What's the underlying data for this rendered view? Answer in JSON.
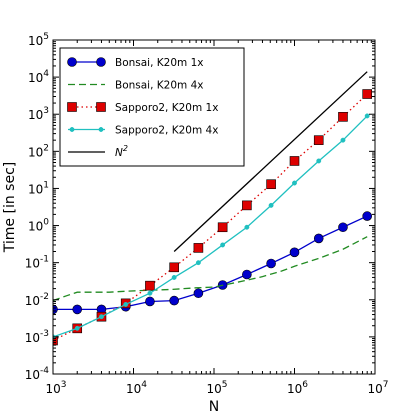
{
  "chart_data": {
    "type": "line",
    "xlabel": "N",
    "ylabel": "Time [in sec]",
    "xscale": "log",
    "yscale": "log",
    "xlim": [
      1000,
      10000000
    ],
    "ylim": [
      0.0001,
      100000
    ],
    "legend_position": "top-left",
    "grid": false,
    "x_ticks": [
      {
        "base": "10",
        "exp": "3",
        "value": 1000
      },
      {
        "base": "10",
        "exp": "4",
        "value": 10000
      },
      {
        "base": "10",
        "exp": "5",
        "value": 100000
      },
      {
        "base": "10",
        "exp": "6",
        "value": 1000000
      },
      {
        "base": "10",
        "exp": "7",
        "value": 10000000
      }
    ],
    "y_ticks": [
      {
        "base": "10",
        "exp": "-4",
        "value": 0.0001
      },
      {
        "base": "10",
        "exp": "-3",
        "value": 0.001
      },
      {
        "base": "10",
        "exp": "-2",
        "value": 0.01
      },
      {
        "base": "10",
        "exp": "-1",
        "value": 0.1
      },
      {
        "base": "10",
        "exp": "0",
        "value": 1
      },
      {
        "base": "10",
        "exp": "1",
        "value": 10
      },
      {
        "base": "10",
        "exp": "2",
        "value": 100
      },
      {
        "base": "10",
        "exp": "3",
        "value": 1000
      },
      {
        "base": "10",
        "exp": "4",
        "value": 10000
      },
      {
        "base": "10",
        "exp": "5",
        "value": 100000
      }
    ],
    "series": [
      {
        "name": "Bonsai, K20m 1x",
        "color": "#0000cc",
        "line_style": "solid",
        "marker": "circle-large",
        "points": [
          [
            1000,
            0.0055
          ],
          [
            2000,
            0.0055
          ],
          [
            4000,
            0.0055
          ],
          [
            8000,
            0.0065
          ],
          [
            16000,
            0.009
          ],
          [
            32000,
            0.0095
          ],
          [
            64000,
            0.015
          ],
          [
            128000,
            0.025
          ],
          [
            256000,
            0.048
          ],
          [
            512000,
            0.095
          ],
          [
            1000000,
            0.19
          ],
          [
            2000000,
            0.45
          ],
          [
            4000000,
            0.9
          ],
          [
            8000000,
            1.8
          ]
        ]
      },
      {
        "name": "Bonsai, K20m 4x",
        "color": "#228b22",
        "line_style": "dashed",
        "marker": "none",
        "points": [
          [
            1000,
            0.0095
          ],
          [
            1500,
            0.013
          ],
          [
            2000,
            0.016
          ],
          [
            3000,
            0.016
          ],
          [
            5000,
            0.016
          ],
          [
            8000,
            0.017
          ],
          [
            15000,
            0.018
          ],
          [
            30000,
            0.019
          ],
          [
            60000,
            0.021
          ],
          [
            100000,
            0.022
          ],
          [
            200000,
            0.03
          ],
          [
            400000,
            0.042
          ],
          [
            700000,
            0.06
          ],
          [
            1000000,
            0.08
          ],
          [
            2000000,
            0.13
          ],
          [
            4000000,
            0.23
          ],
          [
            8000000,
            0.5
          ]
        ]
      },
      {
        "name": "Sapporo2, K20m 1x",
        "color": "#dd0000",
        "line_style": "dotted",
        "marker": "square-large",
        "points": [
          [
            1000,
            0.0008
          ],
          [
            2000,
            0.0017
          ],
          [
            4000,
            0.0035
          ],
          [
            8000,
            0.008
          ],
          [
            16000,
            0.024
          ],
          [
            32000,
            0.075
          ],
          [
            64000,
            0.25
          ],
          [
            128000,
            0.9
          ],
          [
            256000,
            3.5
          ],
          [
            512000,
            13
          ],
          [
            1000000,
            55
          ],
          [
            2000000,
            200
          ],
          [
            4000000,
            850
          ],
          [
            8000000,
            3500
          ]
        ]
      },
      {
        "name": "Sapporo2, K20m 4x",
        "color": "#20c0c0",
        "line_style": "solid",
        "marker": "circle-small",
        "points": [
          [
            1000,
            0.001
          ],
          [
            2000,
            0.0017
          ],
          [
            4000,
            0.0035
          ],
          [
            8000,
            0.0075
          ],
          [
            16000,
            0.015
          ],
          [
            32000,
            0.04
          ],
          [
            64000,
            0.1
          ],
          [
            128000,
            0.3
          ],
          [
            256000,
            0.9
          ],
          [
            512000,
            3.5
          ],
          [
            1000000,
            14
          ],
          [
            2000000,
            55
          ],
          [
            4000000,
            200
          ],
          [
            8000000,
            900
          ]
        ]
      },
      {
        "name_base": "N",
        "name_exp": "2",
        "color": "#000000",
        "line_style": "solid",
        "marker": "none",
        "points": [
          [
            32000,
            0.2
          ],
          [
            8000000,
            14000
          ]
        ]
      }
    ]
  }
}
